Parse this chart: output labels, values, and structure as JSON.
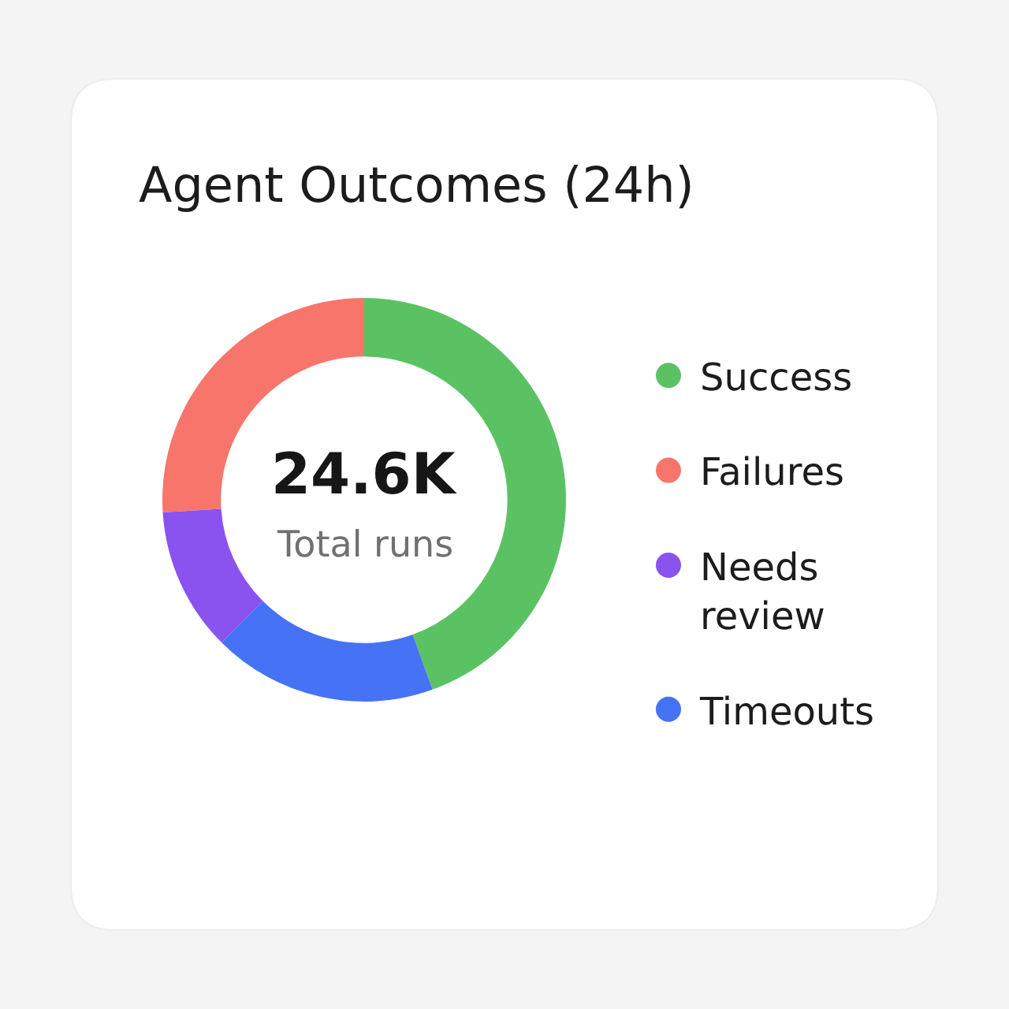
{
  "chart_data": {
    "type": "donut",
    "title": "Agent Outcomes (24h)",
    "categories": [
      "Success",
      "Failures",
      "Needs review",
      "Timeouts"
    ],
    "values": [
      44.5,
      26,
      11.5,
      18
    ],
    "colors": [
      "#5bc264",
      "#f7756a",
      "#8a52ef",
      "#4672f6"
    ],
    "annotations": [
      "24.6K",
      "Total runs"
    ],
    "legend": "right"
  }
}
